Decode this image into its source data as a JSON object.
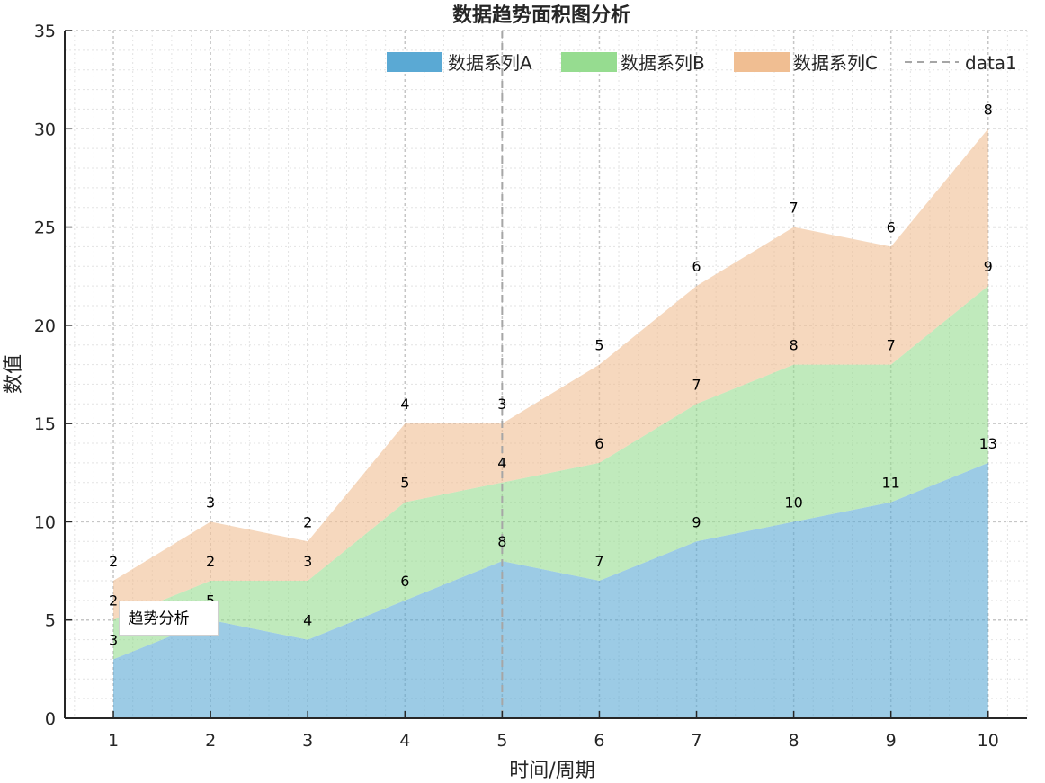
{
  "chart_data": {
    "type": "area",
    "stacked": true,
    "title": "数据趋势面积图分析",
    "xlabel": "时间/周期",
    "ylabel": "数值",
    "x": [
      1,
      2,
      3,
      4,
      5,
      6,
      7,
      8,
      9,
      10
    ],
    "xlim": [
      0.5,
      10.4
    ],
    "ylim": [
      0,
      35
    ],
    "yticks": [
      0,
      5,
      10,
      15,
      20,
      25,
      30,
      35
    ],
    "grid": true,
    "legend_position": "top-right",
    "series": [
      {
        "name": "数据系列A",
        "values": [
          3,
          5,
          4,
          6,
          8,
          7,
          9,
          10,
          11,
          13
        ],
        "color": "#5aa9d4"
      },
      {
        "name": "数据系列B",
        "values": [
          2,
          2,
          3,
          5,
          4,
          6,
          7,
          8,
          7,
          9
        ],
        "color": "#96dc90"
      },
      {
        "name": "数据系列C",
        "values": [
          2,
          3,
          2,
          4,
          3,
          5,
          6,
          7,
          6,
          8
        ],
        "color": "#f0be92"
      }
    ],
    "reference_line": {
      "name": "data1",
      "x": 5,
      "color": "#a6a6a6"
    },
    "annotation": {
      "text": "趋势分析",
      "x": 1.3,
      "y": 5.1
    }
  }
}
